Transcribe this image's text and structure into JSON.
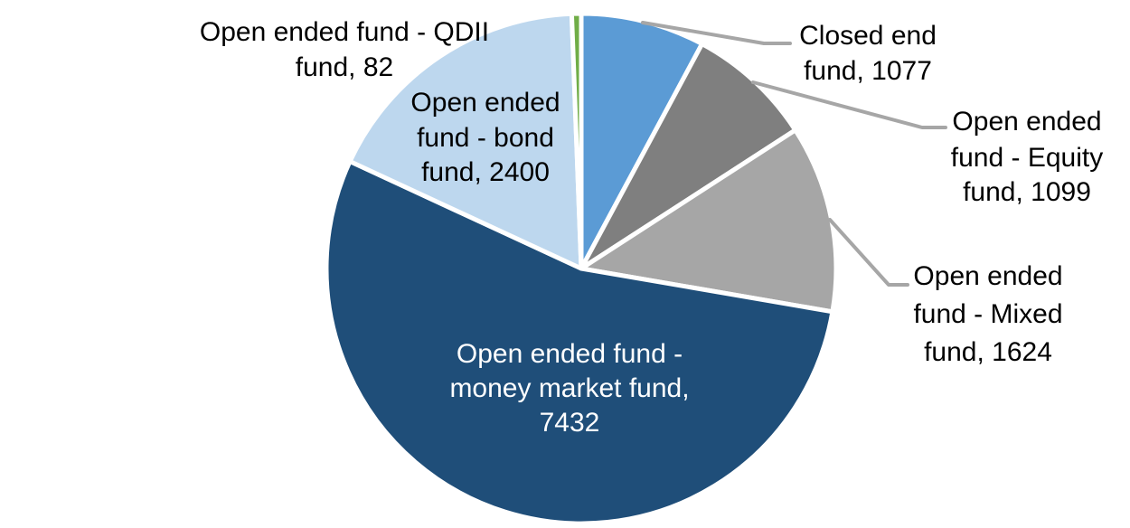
{
  "chart_data": {
    "type": "pie",
    "title": "",
    "legend_position": "none",
    "data_labels": "category name, value",
    "background": "#FFFFFF",
    "text_color": "#000000",
    "slice_border_color": "#FFFFFF",
    "leader_line_color": "#A6A6A6",
    "total": 13714,
    "start_angle_deg": 0,
    "direction": "clockwise",
    "slices": [
      {
        "label": "Closed end fund",
        "value": 1077,
        "color": "#5B9BD5",
        "label_text": "Closed end fund, 1077",
        "label_lines": [
          "Closed end",
          "fund, 1077"
        ],
        "label_placement": "outside-leader",
        "label_color": "#000000"
      },
      {
        "label": "Open ended fund - Equity fund",
        "value": 1099,
        "color": "#7F7F7F",
        "label_text": "Open ended fund - Equity fund, 1099",
        "label_lines": [
          "Open ended",
          "fund - Equity",
          "fund, 1099"
        ],
        "label_placement": "outside-leader",
        "label_color": "#000000"
      },
      {
        "label": "Open ended fund - Mixed fund",
        "value": 1624,
        "color": "#A6A6A6",
        "label_text": "Open ended fund - Mixed fund, 1624",
        "label_lines": [
          "Open ended",
          "fund - Mixed",
          "fund, 1624"
        ],
        "label_placement": "outside-leader",
        "label_color": "#000000"
      },
      {
        "label": "Open ended fund - money market fund",
        "value": 7432,
        "color": "#1F4E79",
        "label_text": "Open ended fund - money market fund, 7432",
        "label_lines": [
          "Open ended fund -",
          "money market fund,",
          "7432"
        ],
        "label_placement": "inside",
        "label_color": "#FFFFFF"
      },
      {
        "label": "Open ended fund - bond fund",
        "value": 2400,
        "color": "#BDD7EE",
        "label_text": "Open ended fund - bond fund, 2400",
        "label_lines": [
          "Open ended",
          "fund - bond",
          "fund, 2400"
        ],
        "label_placement": "inside",
        "label_color": "#000000"
      },
      {
        "label": "Open ended fund - QDII fund",
        "value": 82,
        "color": "#70AD47",
        "label_text": "Open ended fund - QDII fund, 82",
        "label_lines": [
          "Open ended fund - QDII",
          "fund, 82"
        ],
        "label_placement": "outside",
        "label_color": "#000000"
      }
    ]
  }
}
